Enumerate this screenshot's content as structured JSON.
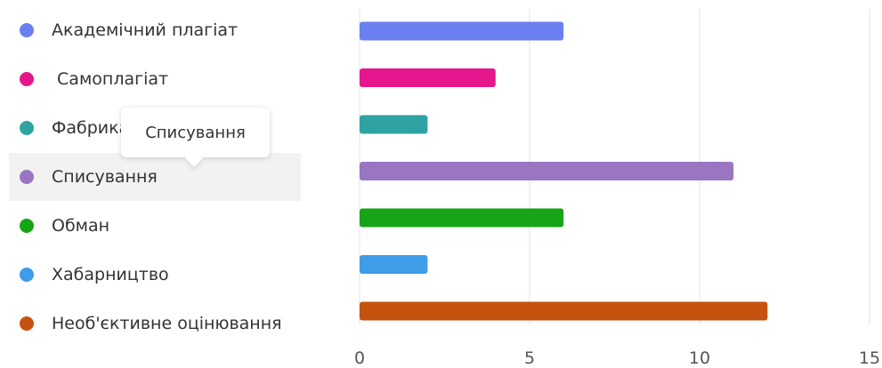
{
  "chart_data": {
    "type": "bar",
    "orientation": "horizontal",
    "categories": [
      "Академічний плагіат",
      " Самоплагіат",
      "Фабрикація",
      "Списування",
      "Обман",
      "Хабарництво",
      "Необ'єктивне оцінювання"
    ],
    "values": [
      6,
      4,
      2,
      11,
      6,
      2,
      12
    ],
    "colors": [
      "#6b80f0",
      "#e6168c",
      "#2fa3a3",
      "#9a76c2",
      "#16a516",
      "#3f9ce8",
      "#c5520f"
    ],
    "xlim": [
      0,
      15
    ],
    "xticks": [
      "0",
      "5",
      "10",
      "15"
    ],
    "grid": true,
    "legend_position": "left",
    "highlighted_category": "Списування"
  },
  "tooltip": {
    "text": "Списування"
  }
}
